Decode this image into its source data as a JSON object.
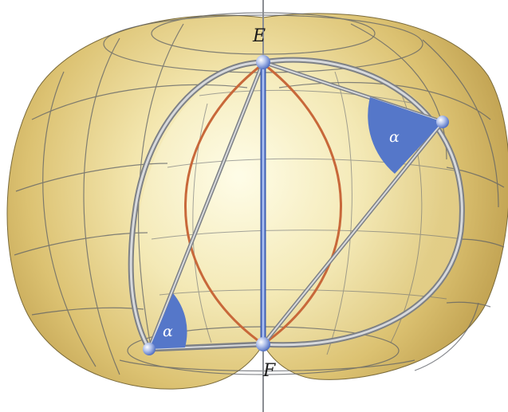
{
  "points": {
    "E": "E",
    "F": "F"
  },
  "angles": {
    "symbol": "α"
  },
  "colors": {
    "surface_light": "#fbf7d9",
    "surface_mid": "#e9d48c",
    "surface_dark": "#c9a856",
    "grid_line": "#5d6066",
    "tube": "#a9acb1",
    "axis": "#6e8fd6",
    "inner_circle": "#c8683a",
    "angle_fill": "#5577c9",
    "point": "#8fa6e0"
  }
}
